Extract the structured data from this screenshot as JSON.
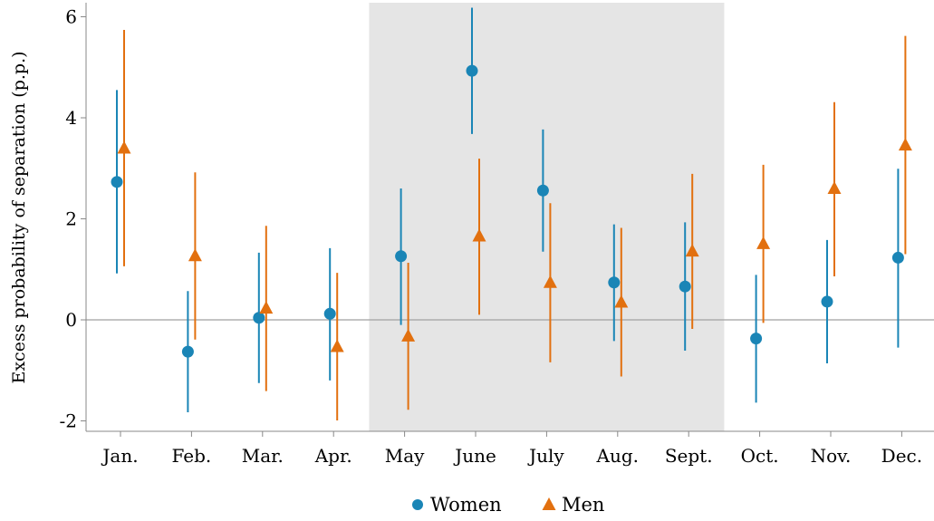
{
  "chart_data": {
    "type": "scatter",
    "ylabel": "Excess probability of separation (p.p.)",
    "xlabel": "",
    "ylim": [
      -2.2,
      6.3
    ],
    "yticks": [
      -2,
      0,
      2,
      4,
      6
    ],
    "ytick_labels": [
      "-2",
      "0",
      "2",
      "4",
      "6"
    ],
    "categories": [
      "Jan.",
      "Feb.",
      "Mar.",
      "Apr.",
      "May",
      "June",
      "July",
      "Aug.",
      "Sept.",
      "Oct.",
      "Nov.",
      "Dec."
    ],
    "shaded_region": {
      "from": "May",
      "to": "Sept."
    },
    "reference_line_y": 0,
    "series": [
      {
        "name": "Women",
        "color": "#1a85b6",
        "marker": "circle",
        "values": [
          2.73,
          -0.63,
          0.04,
          0.12,
          1.26,
          4.93,
          2.56,
          0.74,
          0.66,
          -0.37,
          0.36,
          1.23
        ],
        "ci_low": [
          0.92,
          -1.83,
          -1.25,
          -1.2,
          -0.1,
          3.68,
          1.35,
          -0.42,
          -0.61,
          -1.64,
          -0.86,
          -0.55
        ],
        "ci_high": [
          4.55,
          0.57,
          1.33,
          1.42,
          2.6,
          6.18,
          3.77,
          1.89,
          1.93,
          0.89,
          1.58,
          2.99
        ]
      },
      {
        "name": "Men",
        "color": "#e2700f",
        "marker": "triangle",
        "values": [
          3.4,
          1.27,
          0.23,
          -0.53,
          -0.32,
          1.66,
          0.74,
          0.35,
          1.36,
          1.51,
          2.6,
          3.46
        ],
        "ci_low": [
          1.06,
          -0.39,
          -1.41,
          -1.99,
          -1.78,
          0.1,
          -0.84,
          -1.12,
          -0.18,
          -0.06,
          0.86,
          1.3
        ],
        "ci_high": [
          5.74,
          2.92,
          1.86,
          0.93,
          1.13,
          3.19,
          2.31,
          1.82,
          2.89,
          3.07,
          4.31,
          5.62
        ]
      }
    ],
    "legend": {
      "position": "bottom-center",
      "entries": [
        "Women",
        "Men"
      ]
    }
  }
}
